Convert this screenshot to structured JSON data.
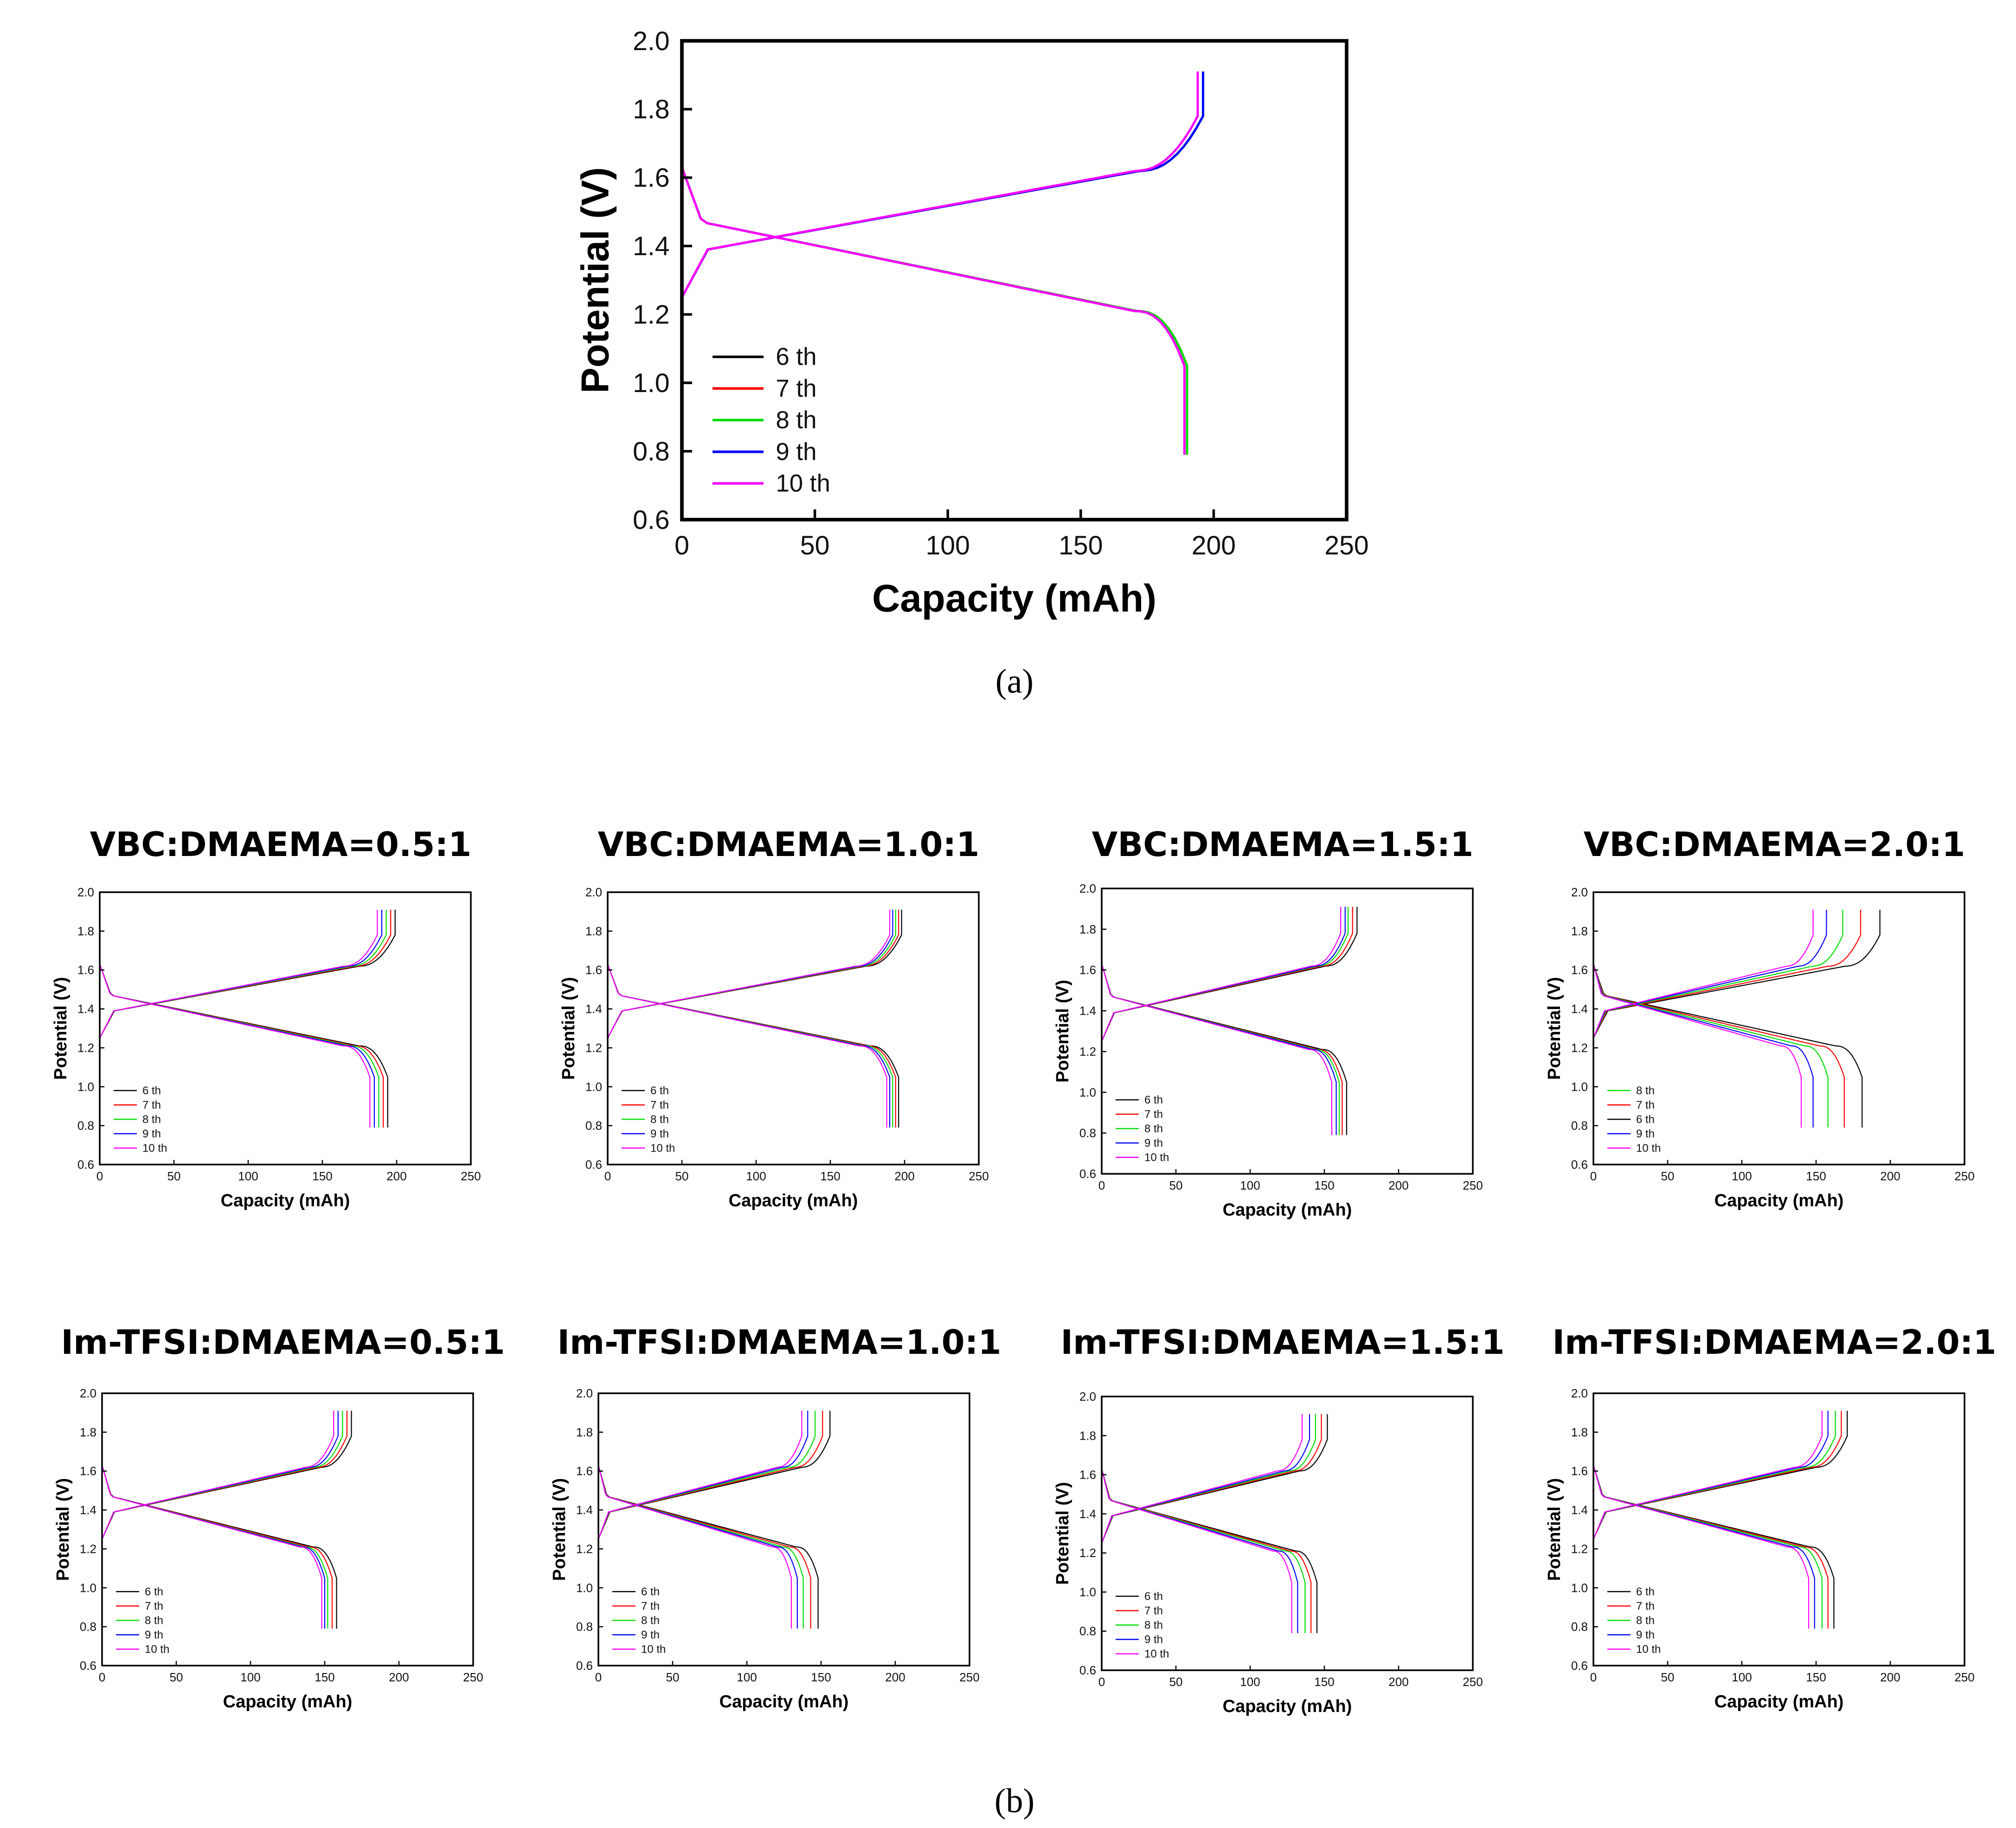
{
  "figure": {
    "caption_a": "(a)",
    "caption_b": "(b)"
  },
  "colors": {
    "6 th": "#000000",
    "7 th": "#ff0000",
    "8 th": "#00dd00",
    "9 th": "#0000ff",
    "10 th": "#ff00ff"
  },
  "chart_data": [
    {
      "id": "a",
      "type": "line",
      "title": "",
      "xlabel": "Capacity (mAh)",
      "ylabel": "Potential (V)",
      "xlim": [
        0,
        250
      ],
      "ylim": [
        0.6,
        2.0
      ],
      "xticks": [
        "0",
        "50",
        "100",
        "150",
        "200",
        "250"
      ],
      "yticks": [
        "0.6",
        "0.8",
        "1.0",
        "1.2",
        "1.4",
        "1.6",
        "1.8",
        "2.0"
      ],
      "legend": "lower-left",
      "series": [
        {
          "name": "6 th",
          "charge_capacity": 196,
          "discharge_capacity": 190
        },
        {
          "name": "7 th",
          "charge_capacity": 196,
          "discharge_capacity": 190
        },
        {
          "name": "8 th",
          "charge_capacity": 196,
          "discharge_capacity": 190
        },
        {
          "name": "9 th",
          "charge_capacity": 196,
          "discharge_capacity": 189
        },
        {
          "name": "10 th",
          "charge_capacity": 194,
          "discharge_capacity": 189
        }
      ]
    },
    {
      "id": "b1",
      "type": "line",
      "title": "VBC:DMAEMA=0.5:1",
      "xlabel": "Capacity (mAh)",
      "ylabel": "Potential (V)",
      "xlim": [
        0,
        250
      ],
      "ylim": [
        0.6,
        2.0
      ],
      "xticks": [
        "0",
        "50",
        "100",
        "150",
        "200",
        "250"
      ],
      "yticks": [
        "0.6",
        "0.8",
        "1.0",
        "1.2",
        "1.4",
        "1.6",
        "1.8",
        "2.0"
      ],
      "legend": "lower-left",
      "series": [
        {
          "name": "6 th",
          "charge_capacity": 199,
          "discharge_capacity": 194
        },
        {
          "name": "7 th",
          "charge_capacity": 196,
          "discharge_capacity": 191
        },
        {
          "name": "8 th",
          "charge_capacity": 193,
          "discharge_capacity": 188
        },
        {
          "name": "9 th",
          "charge_capacity": 190,
          "discharge_capacity": 185
        },
        {
          "name": "10 th",
          "charge_capacity": 187,
          "discharge_capacity": 182
        }
      ]
    },
    {
      "id": "b2",
      "type": "line",
      "title": "VBC:DMAEMA=1.0:1",
      "xlabel": "Capacity (mAh)",
      "ylabel": "Potential (V)",
      "xlim": [
        0,
        250
      ],
      "ylim": [
        0.6,
        2.0
      ],
      "xticks": [
        "0",
        "50",
        "100",
        "150",
        "200",
        "250"
      ],
      "yticks": [
        "0.6",
        "0.8",
        "1.0",
        "1.2",
        "1.4",
        "1.6",
        "1.8",
        "2.0"
      ],
      "legend": "lower-left",
      "series": [
        {
          "name": "6 th",
          "charge_capacity": 198,
          "discharge_capacity": 196
        },
        {
          "name": "7 th",
          "charge_capacity": 196,
          "discharge_capacity": 194
        },
        {
          "name": "8 th",
          "charge_capacity": 194,
          "discharge_capacity": 192
        },
        {
          "name": "9 th",
          "charge_capacity": 192,
          "discharge_capacity": 190
        },
        {
          "name": "10 th",
          "charge_capacity": 190,
          "discharge_capacity": 188
        }
      ]
    },
    {
      "id": "b3",
      "type": "line",
      "title": "VBC:DMAEMA=1.5:1",
      "xlabel": "Capacity (mAh)",
      "ylabel": "Potential (V)",
      "xlim": [
        0,
        250
      ],
      "ylim": [
        0.6,
        2.0
      ],
      "xticks": [
        "0",
        "50",
        "100",
        "150",
        "200",
        "250"
      ],
      "yticks": [
        "0.6",
        "0.8",
        "1.0",
        "1.2",
        "1.4",
        "1.6",
        "1.8",
        "2.0"
      ],
      "legend": "lower-left",
      "series": [
        {
          "name": "6 th",
          "charge_capacity": 172,
          "discharge_capacity": 165
        },
        {
          "name": "7 th",
          "charge_capacity": 169,
          "discharge_capacity": 162
        },
        {
          "name": "8 th",
          "charge_capacity": 166,
          "discharge_capacity": 160
        },
        {
          "name": "9 th",
          "charge_capacity": 164,
          "discharge_capacity": 158
        },
        {
          "name": "10 th",
          "charge_capacity": 161,
          "discharge_capacity": 155
        }
      ]
    },
    {
      "id": "b4",
      "type": "line",
      "title": "VBC:DMAEMA=2.0:1",
      "xlabel": "Capacity (mAh)",
      "ylabel": "Potential (V)",
      "xlim": [
        0,
        250
      ],
      "ylim": [
        0.6,
        2.0
      ],
      "xticks": [
        "0",
        "50",
        "100",
        "150",
        "200",
        "250"
      ],
      "yticks": [
        "0.6",
        "0.8",
        "1.0",
        "1.2",
        "1.4",
        "1.6",
        "1.8",
        "2.0"
      ],
      "legend": "lower-left",
      "legend_order": [
        "8 th",
        "7 th",
        "6 th",
        "9 th",
        "10 th"
      ],
      "series": [
        {
          "name": "6 th",
          "charge_capacity": 193,
          "discharge_capacity": 181
        },
        {
          "name": "7 th",
          "charge_capacity": 180,
          "discharge_capacity": 169
        },
        {
          "name": "8 th",
          "charge_capacity": 168,
          "discharge_capacity": 158
        },
        {
          "name": "9 th",
          "charge_capacity": 157,
          "discharge_capacity": 148
        },
        {
          "name": "10 th",
          "charge_capacity": 148,
          "discharge_capacity": 140
        }
      ]
    },
    {
      "id": "b5",
      "type": "line",
      "title": "Im-TFSI:DMAEMA=0.5:1",
      "xlabel": "Capacity (mAh)",
      "ylabel": "Potential (V)",
      "xlim": [
        0,
        250
      ],
      "ylim": [
        0.6,
        2.0
      ],
      "xticks": [
        "0",
        "50",
        "100",
        "150",
        "200",
        "250"
      ],
      "yticks": [
        "0.6",
        "0.8",
        "1.0",
        "1.2",
        "1.4",
        "1.6",
        "1.8",
        "2.0"
      ],
      "legend": "lower-left",
      "series": [
        {
          "name": "6 th",
          "charge_capacity": 168,
          "discharge_capacity": 158
        },
        {
          "name": "7 th",
          "charge_capacity": 165,
          "discharge_capacity": 155
        },
        {
          "name": "8 th",
          "charge_capacity": 162,
          "discharge_capacity": 152
        },
        {
          "name": "9 th",
          "charge_capacity": 159,
          "discharge_capacity": 150
        },
        {
          "name": "10 th",
          "charge_capacity": 156,
          "discharge_capacity": 148
        }
      ]
    },
    {
      "id": "b6",
      "type": "line",
      "title": "Im-TFSI:DMAEMA=1.0:1",
      "xlabel": "Capacity (mAh)",
      "ylabel": "Potential (V)",
      "xlim": [
        0,
        250
      ],
      "ylim": [
        0.6,
        2.0
      ],
      "xticks": [
        "0",
        "50",
        "100",
        "150",
        "200",
        "250"
      ],
      "yticks": [
        "0.6",
        "0.8",
        "1.0",
        "1.2",
        "1.4",
        "1.6",
        "1.8",
        "2.0"
      ],
      "legend": "lower-left",
      "series": [
        {
          "name": "6 th",
          "charge_capacity": 156,
          "discharge_capacity": 148
        },
        {
          "name": "7 th",
          "charge_capacity": 151,
          "discharge_capacity": 143
        },
        {
          "name": "8 th",
          "charge_capacity": 146,
          "discharge_capacity": 138
        },
        {
          "name": "9 th",
          "charge_capacity": 141,
          "discharge_capacity": 134
        },
        {
          "name": "10 th",
          "charge_capacity": 137,
          "discharge_capacity": 130
        }
      ]
    },
    {
      "id": "b7",
      "type": "line",
      "title": "Im-TFSI:DMAEMA=1.5:1",
      "xlabel": "Capacity (mAh)",
      "ylabel": "Potential (V)",
      "xlim": [
        0,
        250
      ],
      "ylim": [
        0.6,
        2.0
      ],
      "xticks": [
        "0",
        "50",
        "100",
        "150",
        "200",
        "250"
      ],
      "yticks": [
        "0.6",
        "0.8",
        "1.0",
        "1.2",
        "1.4",
        "1.6",
        "1.8",
        "2.0"
      ],
      "legend": "lower-left",
      "series": [
        {
          "name": "6 th",
          "charge_capacity": 152,
          "discharge_capacity": 145
        },
        {
          "name": "7 th",
          "charge_capacity": 148,
          "discharge_capacity": 141
        },
        {
          "name": "8 th",
          "charge_capacity": 144,
          "discharge_capacity": 137
        },
        {
          "name": "9 th",
          "charge_capacity": 140,
          "discharge_capacity": 132
        },
        {
          "name": "10 th",
          "charge_capacity": 135,
          "discharge_capacity": 128
        }
      ]
    },
    {
      "id": "b8",
      "type": "line",
      "title": "Im-TFSI:DMAEMA=2.0:1",
      "xlabel": "Capacity (mAh)",
      "ylabel": "Potential (V)",
      "xlim": [
        0,
        250
      ],
      "ylim": [
        0.6,
        2.0
      ],
      "xticks": [
        "0",
        "50",
        "100",
        "150",
        "200",
        "250"
      ],
      "yticks": [
        "0.6",
        "0.8",
        "1.0",
        "1.2",
        "1.4",
        "1.6",
        "1.8",
        "2.0"
      ],
      "legend": "lower-left",
      "series": [
        {
          "name": "6 th",
          "charge_capacity": 171,
          "discharge_capacity": 162
        },
        {
          "name": "7 th",
          "charge_capacity": 167,
          "discharge_capacity": 158
        },
        {
          "name": "8 th",
          "charge_capacity": 163,
          "discharge_capacity": 154
        },
        {
          "name": "9 th",
          "charge_capacity": 158,
          "discharge_capacity": 149
        },
        {
          "name": "10 th",
          "charge_capacity": 154,
          "discharge_capacity": 145
        }
      ]
    }
  ]
}
